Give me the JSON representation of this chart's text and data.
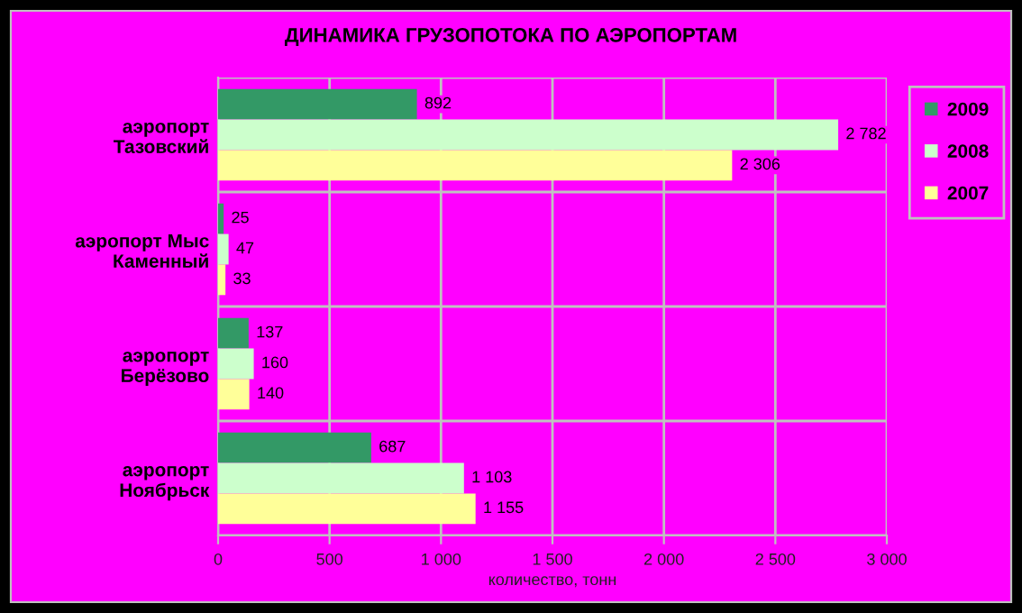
{
  "chart_data": {
    "type": "bar",
    "orientation": "horizontal",
    "title": "ДИНАМИКА ГРУЗОПОТОКА ПО АЭРОПОРТАМ",
    "xlabel": "количество, тонн",
    "categories": [
      "аэропорт\nТазовский",
      "аэропорт Мыс\nКаменный",
      "аэропорт\nБерёзово",
      "аэропорт\nНоябрьск"
    ],
    "series": [
      {
        "name": "2009",
        "color": "#339966",
        "values": [
          892,
          25,
          137,
          687
        ],
        "value_labels": [
          "892",
          "25",
          "137",
          "687"
        ]
      },
      {
        "name": "2008",
        "color": "#ccffcc",
        "values": [
          2782,
          47,
          160,
          1103
        ],
        "value_labels": [
          "2 782",
          "47",
          "160",
          "1 103"
        ]
      },
      {
        "name": "2007",
        "color": "#ffff99",
        "values": [
          2306,
          33,
          140,
          1155
        ],
        "value_labels": [
          "2 306",
          "33",
          "140",
          "1 155"
        ]
      }
    ],
    "xlim": [
      0,
      3000
    ],
    "xticks": [
      0,
      500,
      {
        "value": 1000,
        "label": "1 000"
      },
      {
        "value": 1500,
        "label": "1 500"
      },
      {
        "value": 2000,
        "label": "2 000"
      },
      {
        "value": 2500,
        "label": "2 500"
      },
      {
        "value": 3000,
        "label": "3 000"
      }
    ],
    "grid": true,
    "legend": "right"
  }
}
